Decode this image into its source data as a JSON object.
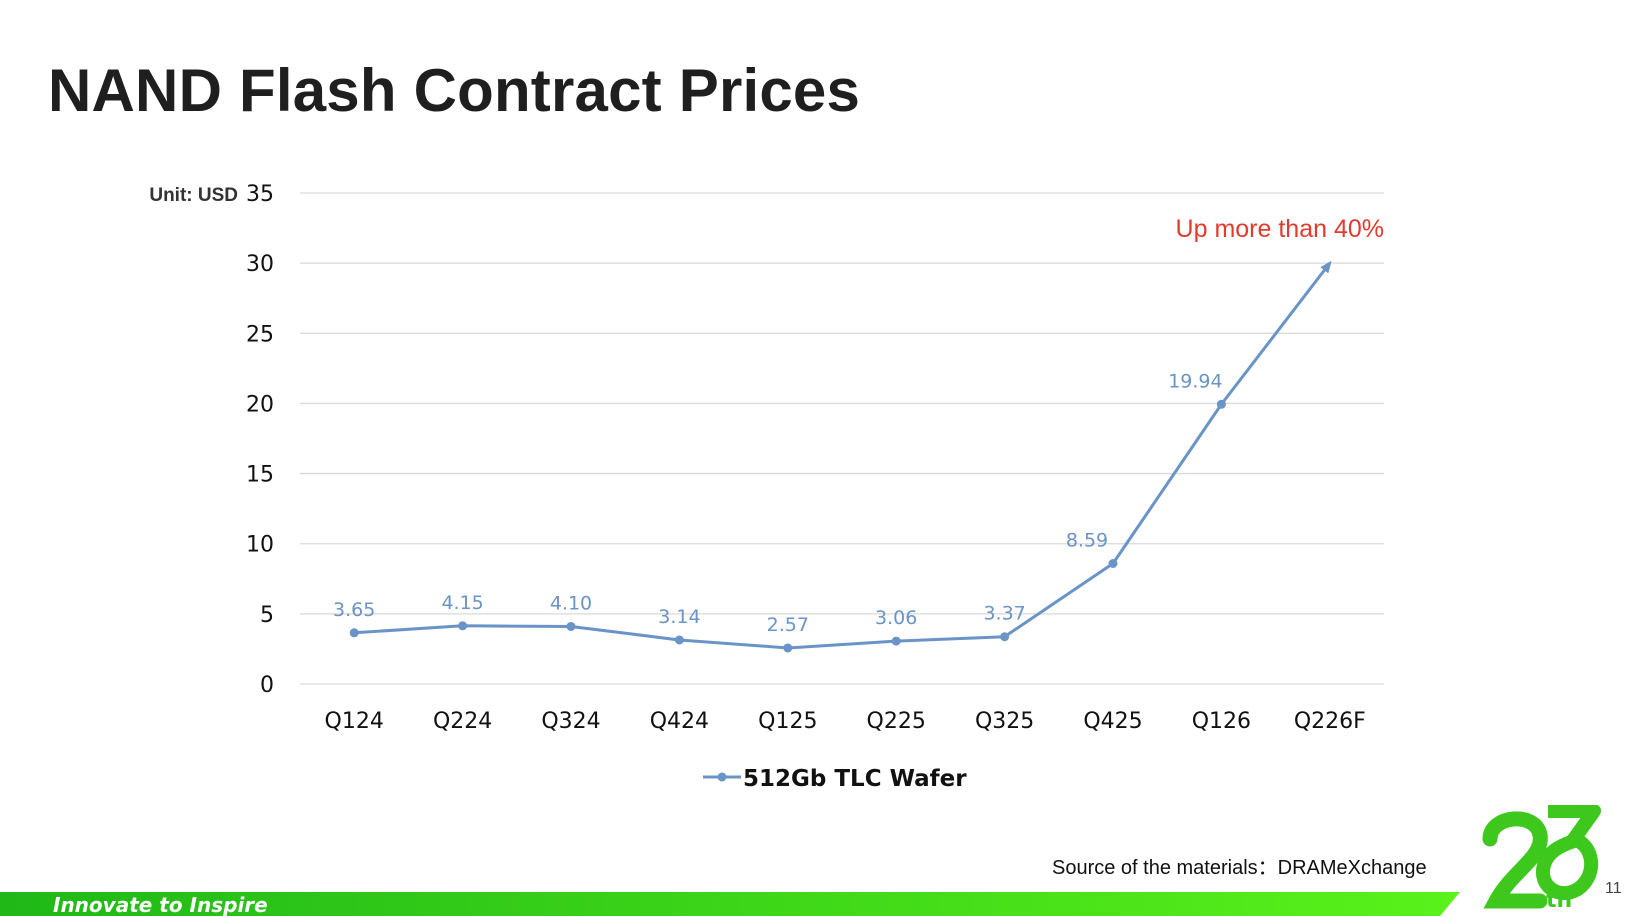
{
  "slide": {
    "title": "NAND Flash Contract Prices",
    "source": "Source of the materials：DRAMeXchange",
    "slogan": "Innovate to Inspire",
    "page_number": "11",
    "logo_text": "25th"
  },
  "colors": {
    "series": "#6a93c8",
    "annotation": "#e23b2e",
    "grid": "#d9d9d9",
    "footer_green": "#3fd61c",
    "logo_green": "#3ec81e"
  },
  "chart_data": {
    "type": "line",
    "unit_label": "Unit: USD",
    "categories": [
      "Q124",
      "Q224",
      "Q324",
      "Q424",
      "Q125",
      "Q225",
      "Q325",
      "Q425",
      "Q126",
      "Q226F"
    ],
    "series": [
      {
        "name": "512Gb TLC Wafer",
        "values": [
          3.65,
          4.15,
          4.1,
          3.14,
          2.57,
          3.06,
          3.37,
          8.59,
          19.94,
          null
        ],
        "data_labels": [
          "3.65",
          "4.15",
          "4.10",
          "3.14",
          "2.57",
          "3.06",
          "3.37",
          "8.59",
          "19.94",
          ""
        ]
      }
    ],
    "projection_arrow": {
      "from_category": "Q126",
      "from_value": 19.94,
      "to_category": "Q226F",
      "to_value": 30
    },
    "annotation": "Up more than 40%",
    "ylim": [
      0,
      35
    ],
    "yticks": [
      0,
      5,
      10,
      15,
      20,
      25,
      30,
      35
    ],
    "grid": true,
    "legend_position": "bottom"
  }
}
